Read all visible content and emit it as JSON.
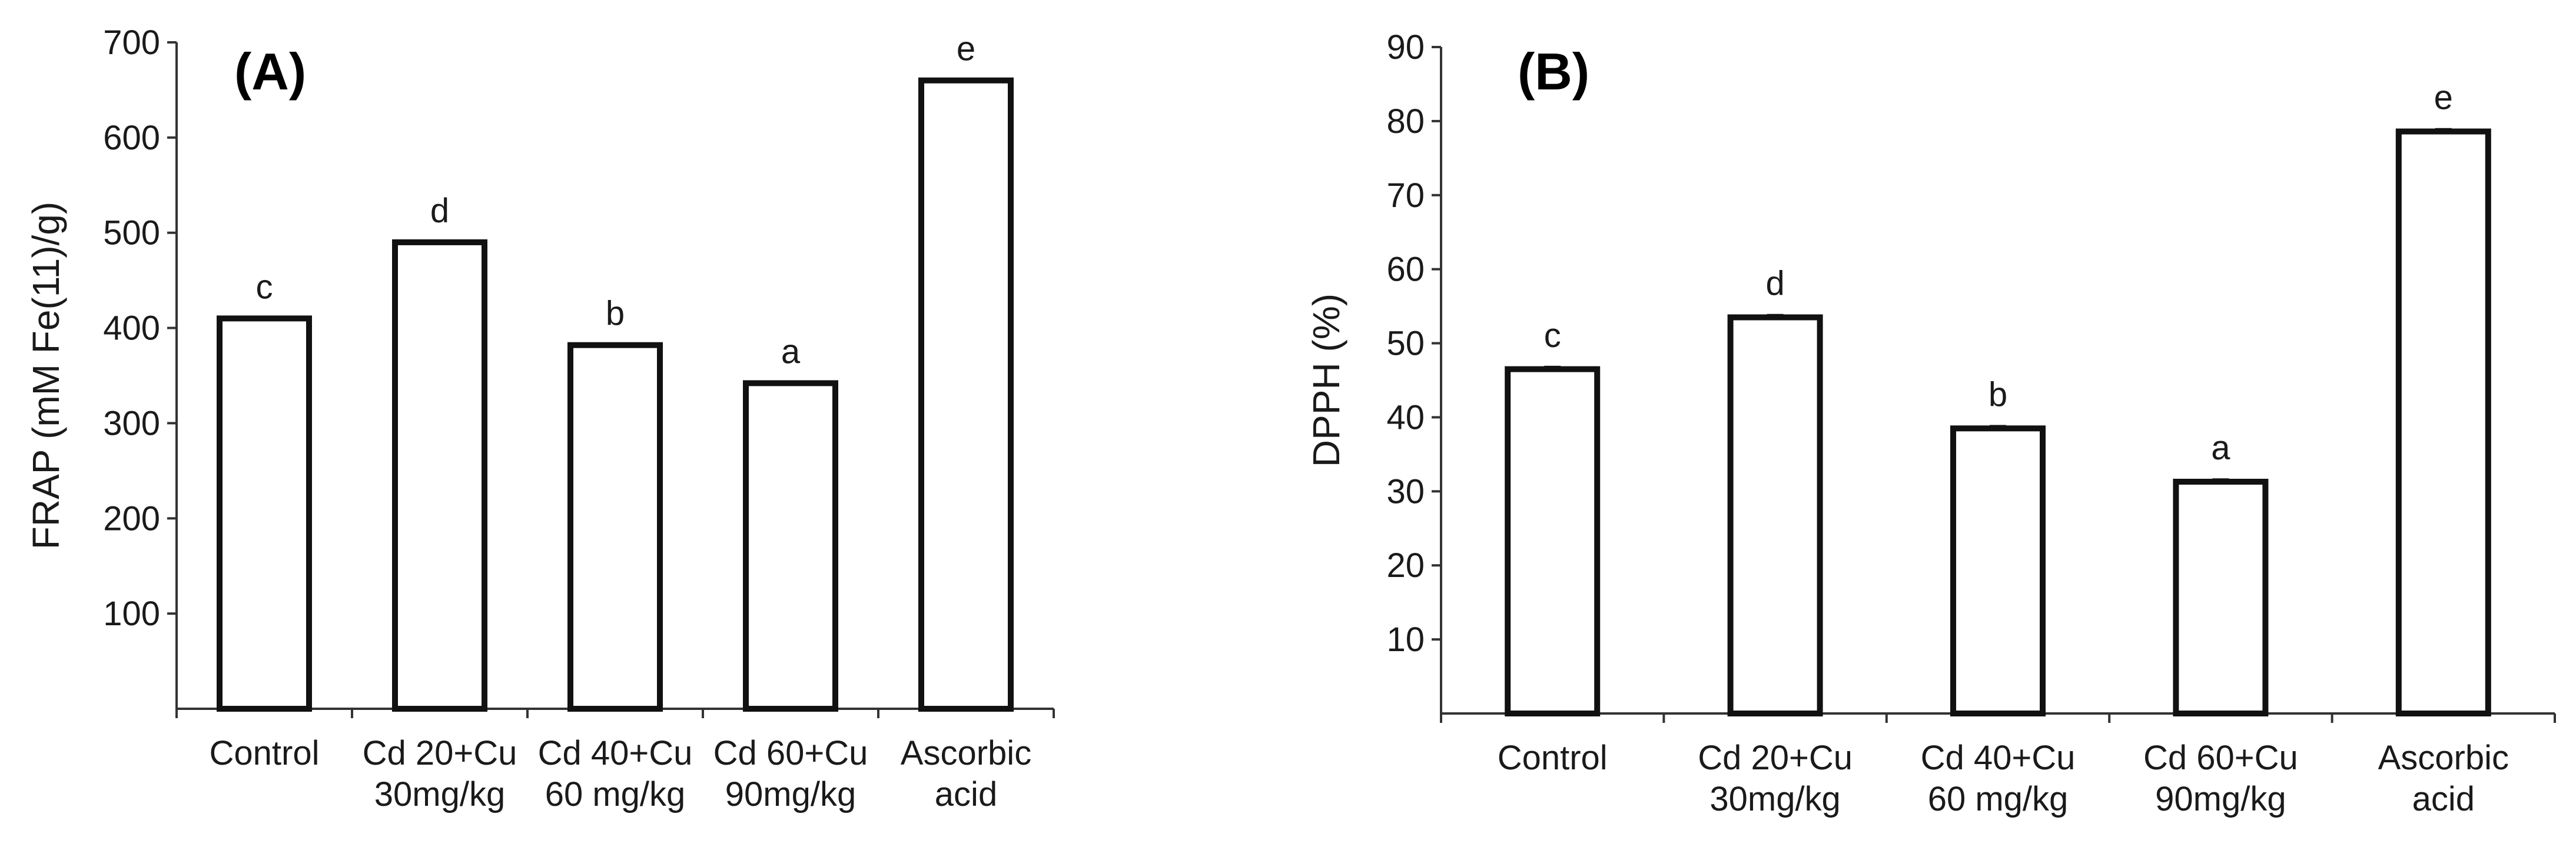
{
  "chart_data": [
    {
      "type": "bar",
      "title": "(A)",
      "xlabel": "",
      "ylabel": "FRAP (mM Fe(11)/g)",
      "ylim": [
        0,
        700
      ],
      "yticks": [
        100,
        200,
        300,
        400,
        500,
        600,
        700
      ],
      "categories": [
        [
          "Control"
        ],
        [
          "Cd 20+Cu",
          "30mg/kg"
        ],
        [
          "Cd 40+Cu",
          "60 mg/kg"
        ],
        [
          "Cd 60+Cu",
          "90mg/kg"
        ],
        [
          "Ascorbic",
          "acid"
        ]
      ],
      "values": [
        410,
        490,
        382,
        342,
        660
      ],
      "errors": [
        0,
        0,
        0,
        0,
        0
      ],
      "significance": [
        "c",
        "d",
        "b",
        "a",
        "e"
      ]
    },
    {
      "type": "bar",
      "title": "(B)",
      "xlabel": "",
      "ylabel": "DPPH (%)",
      "ylim": [
        0,
        90
      ],
      "yticks": [
        10,
        20,
        30,
        40,
        50,
        60,
        70,
        80,
        90
      ],
      "categories": [
        [
          "Control"
        ],
        [
          "Cd 20+Cu",
          "30mg/kg"
        ],
        [
          "Cd 40+Cu",
          "60 mg/kg"
        ],
        [
          "Cd 60+Cu",
          "90mg/kg"
        ],
        [
          "Ascorbic",
          "acid"
        ]
      ],
      "values": [
        46.5,
        53.5,
        38.5,
        31.3,
        78.6
      ],
      "errors": [
        0.3,
        0.3,
        0.3,
        0.3,
        0.3
      ],
      "significance": [
        "c",
        "d",
        "b",
        "a",
        "e"
      ]
    }
  ]
}
